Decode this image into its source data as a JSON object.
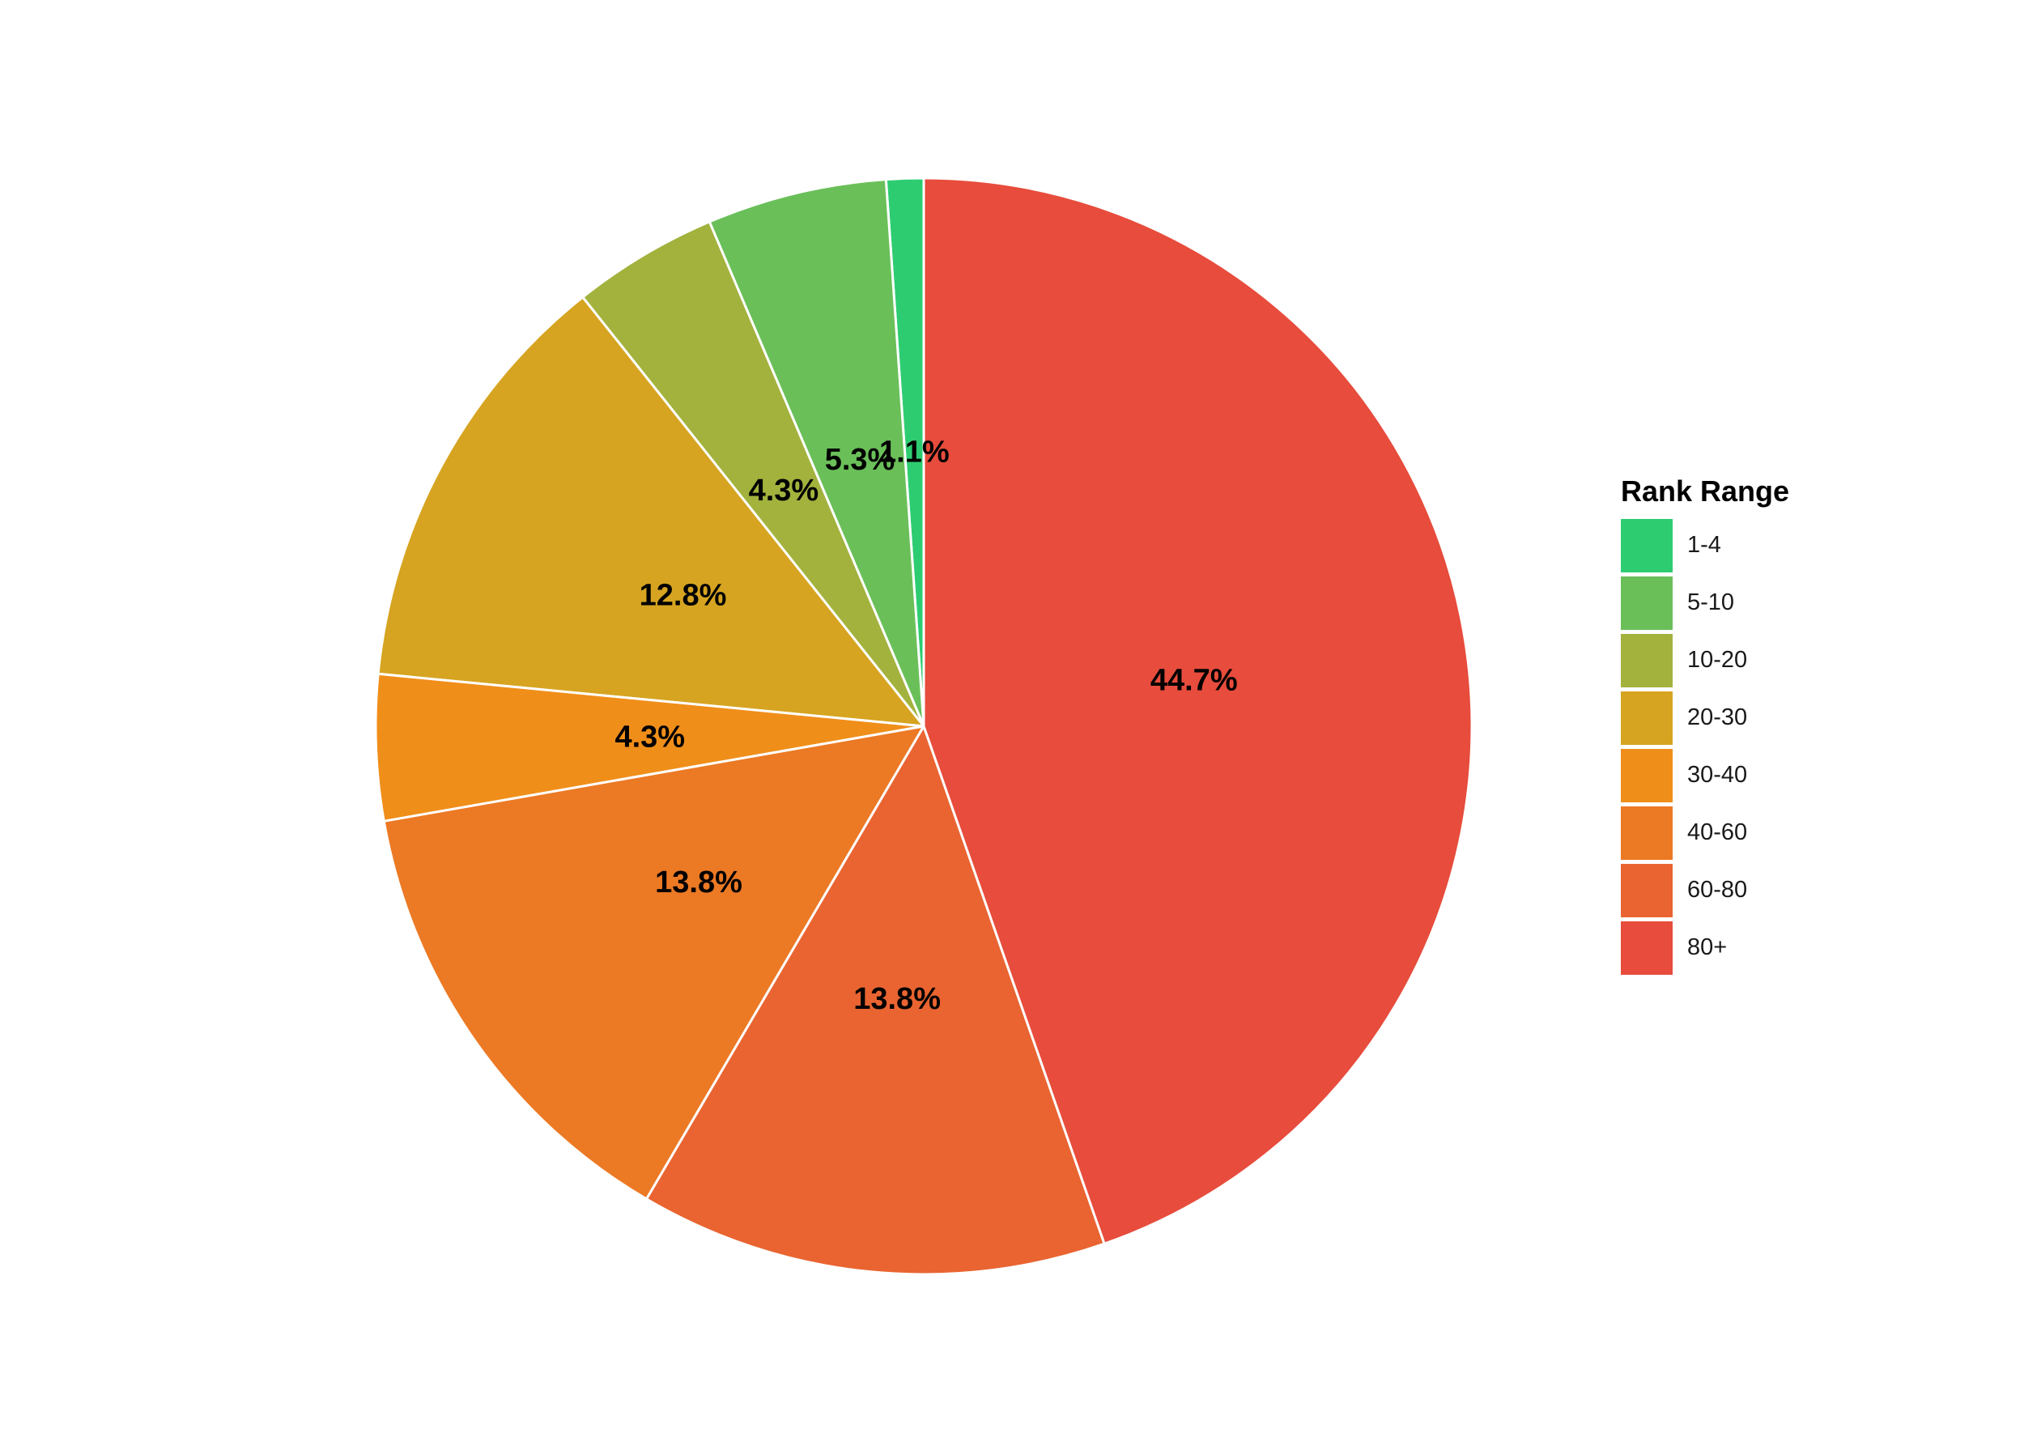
{
  "chart_data": {
    "type": "pie",
    "legend_title": "Rank Range",
    "legend_position": "right",
    "start_angle_deg": 0,
    "direction": "counterclockwise",
    "slices": [
      {
        "category": "1-4",
        "value": 1.1,
        "label": "1.1%",
        "color": "#2ECC71"
      },
      {
        "category": "5-10",
        "value": 5.3,
        "label": "5.3%",
        "color": "#6ABF59"
      },
      {
        "category": "10-20",
        "value": 4.3,
        "label": "4.3%",
        "color": "#A2B23D"
      },
      {
        "category": "20-30",
        "value": 12.8,
        "label": "12.8%",
        "color": "#D6A421"
      },
      {
        "category": "30-40",
        "value": 4.3,
        "label": "4.3%",
        "color": "#F08E1A"
      },
      {
        "category": "40-60",
        "value": 13.8,
        "label": "13.8%",
        "color": "#EC7924"
      },
      {
        "category": "60-80",
        "value": 13.8,
        "label": "13.8%",
        "color": "#E96431"
      },
      {
        "category": "80+",
        "value": 44.7,
        "label": "44.7%",
        "color": "#E74C3C"
      }
    ]
  }
}
